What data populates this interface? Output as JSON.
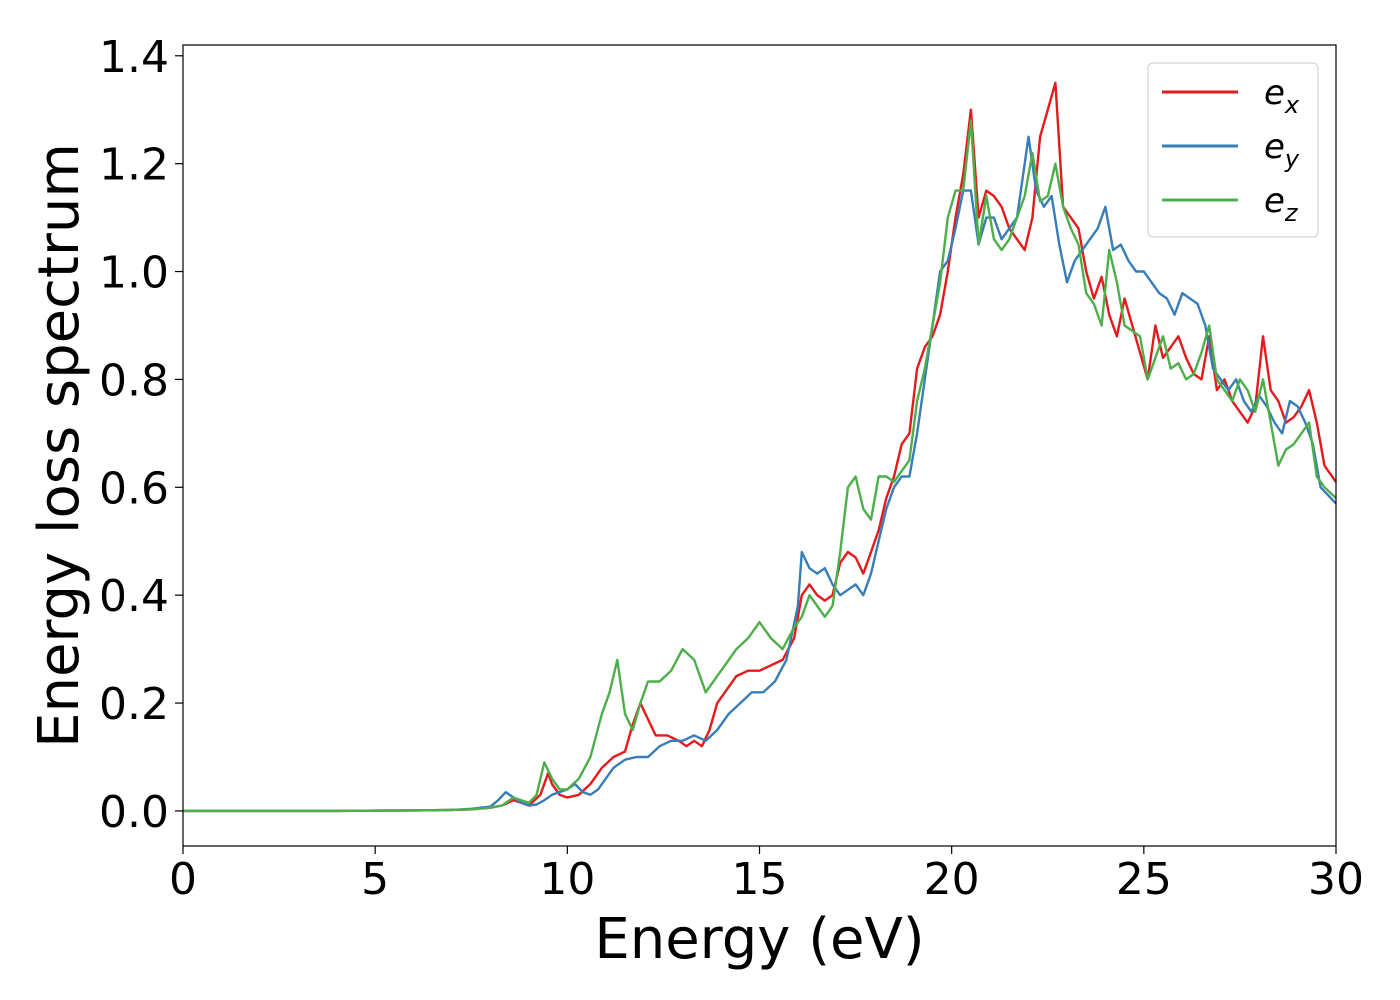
{
  "chart_data": {
    "type": "line",
    "xlabel": "Energy (eV)",
    "ylabel": "Energy loss spectrum",
    "xlim": [
      0,
      30
    ],
    "ylim": [
      -0.065,
      1.42
    ],
    "xticks": [
      "0",
      "5",
      "10",
      "15",
      "20",
      "25",
      "30"
    ],
    "yticks": [
      "0.0",
      "0.2",
      "0.4",
      "0.6",
      "0.8",
      "1.0",
      "1.2",
      "1.4"
    ],
    "grid": false,
    "legend_position": "top-right",
    "series": [
      {
        "name": "e_x",
        "base": "e",
        "sub": "x",
        "color": "#e41a1c",
        "x": [
          0,
          2,
          4,
          6,
          7,
          7.5,
          8,
          8.3,
          8.6,
          8.8,
          9,
          9.3,
          9.5,
          9.6,
          9.8,
          10,
          10.3,
          10.6,
          10.9,
          11.2,
          11.5,
          11.7,
          11.9,
          12.1,
          12.3,
          12.6,
          12.9,
          13.1,
          13.3,
          13.5,
          13.7,
          13.9,
          14.1,
          14.4,
          14.7,
          15,
          15.3,
          15.6,
          15.9,
          16.1,
          16.3,
          16.5,
          16.7,
          16.9,
          17.1,
          17.3,
          17.5,
          17.7,
          17.9,
          18.1,
          18.3,
          18.5,
          18.7,
          18.9,
          19.1,
          19.3,
          19.5,
          19.7,
          19.9,
          20.1,
          20.3,
          20.5,
          20.7,
          20.9,
          21.1,
          21.3,
          21.5,
          21.7,
          21.9,
          22.1,
          22.3,
          22.5,
          22.7,
          22.9,
          23.1,
          23.3,
          23.5,
          23.7,
          23.9,
          24.1,
          24.3,
          24.5,
          24.7,
          24.9,
          25.1,
          25.3,
          25.5,
          25.7,
          25.9,
          26.1,
          26.3,
          26.5,
          26.7,
          26.9,
          27.1,
          27.3,
          27.5,
          27.7,
          27.9,
          28.1,
          28.3,
          28.5,
          28.7,
          28.9,
          29.1,
          29.3,
          29.5,
          29.7,
          30
        ],
        "y": [
          0,
          0,
          0,
          0.001,
          0.002,
          0.003,
          0.006,
          0.01,
          0.02,
          0.015,
          0.01,
          0.03,
          0.07,
          0.05,
          0.03,
          0.025,
          0.03,
          0.05,
          0.08,
          0.1,
          0.11,
          0.16,
          0.2,
          0.17,
          0.14,
          0.14,
          0.13,
          0.12,
          0.13,
          0.12,
          0.15,
          0.2,
          0.22,
          0.25,
          0.26,
          0.26,
          0.27,
          0.28,
          0.32,
          0.4,
          0.42,
          0.4,
          0.39,
          0.4,
          0.46,
          0.48,
          0.47,
          0.44,
          0.48,
          0.52,
          0.58,
          0.62,
          0.68,
          0.7,
          0.82,
          0.86,
          0.88,
          0.92,
          1.0,
          1.1,
          1.18,
          1.3,
          1.1,
          1.15,
          1.14,
          1.12,
          1.08,
          1.06,
          1.04,
          1.1,
          1.25,
          1.3,
          1.35,
          1.12,
          1.1,
          1.08,
          1.0,
          0.95,
          0.99,
          0.92,
          0.88,
          0.95,
          0.9,
          0.85,
          0.8,
          0.9,
          0.84,
          0.86,
          0.88,
          0.84,
          0.81,
          0.8,
          0.88,
          0.78,
          0.8,
          0.76,
          0.74,
          0.72,
          0.75,
          0.88,
          0.78,
          0.76,
          0.72,
          0.73,
          0.75,
          0.78,
          0.72,
          0.64,
          0.61
        ]
      },
      {
        "name": "e_y",
        "base": "e",
        "sub": "y",
        "color": "#377eb8",
        "x": [
          0,
          2,
          4,
          6,
          7,
          7.5,
          8,
          8.2,
          8.4,
          8.6,
          8.8,
          9,
          9.2,
          9.4,
          9.6,
          9.8,
          10,
          10.2,
          10.4,
          10.6,
          10.8,
          11,
          11.2,
          11.5,
          11.8,
          12.1,
          12.4,
          12.7,
          13,
          13.3,
          13.6,
          13.9,
          14.2,
          14.5,
          14.8,
          15.1,
          15.4,
          15.7,
          16,
          16.1,
          16.3,
          16.5,
          16.7,
          16.9,
          17.1,
          17.3,
          17.5,
          17.7,
          17.9,
          18.1,
          18.3,
          18.5,
          18.7,
          18.9,
          19.1,
          19.3,
          19.5,
          19.7,
          19.9,
          20.1,
          20.3,
          20.5,
          20.7,
          20.9,
          21.1,
          21.3,
          21.5,
          21.7,
          21.9,
          22,
          22.2,
          22.4,
          22.6,
          22.8,
          23,
          23.2,
          23.4,
          23.6,
          23.8,
          24,
          24.2,
          24.4,
          24.6,
          24.8,
          25,
          25.2,
          25.4,
          25.6,
          25.8,
          26,
          26.2,
          26.4,
          26.6,
          26.8,
          27,
          27.2,
          27.4,
          27.6,
          27.8,
          28,
          28.2,
          28.4,
          28.6,
          28.8,
          29,
          29.2,
          29.4,
          29.6,
          30
        ],
        "y": [
          0,
          0,
          0,
          0.001,
          0.002,
          0.004,
          0.008,
          0.02,
          0.035,
          0.025,
          0.015,
          0.01,
          0.012,
          0.02,
          0.03,
          0.035,
          0.04,
          0.05,
          0.035,
          0.03,
          0.04,
          0.06,
          0.08,
          0.095,
          0.1,
          0.1,
          0.12,
          0.13,
          0.13,
          0.14,
          0.13,
          0.15,
          0.18,
          0.2,
          0.22,
          0.22,
          0.24,
          0.28,
          0.38,
          0.48,
          0.45,
          0.44,
          0.45,
          0.42,
          0.4,
          0.41,
          0.42,
          0.4,
          0.44,
          0.5,
          0.56,
          0.6,
          0.62,
          0.62,
          0.7,
          0.8,
          0.9,
          1.0,
          1.02,
          1.08,
          1.15,
          1.15,
          1.05,
          1.1,
          1.1,
          1.06,
          1.08,
          1.1,
          1.2,
          1.25,
          1.15,
          1.12,
          1.14,
          1.05,
          0.98,
          1.02,
          1.04,
          1.06,
          1.08,
          1.12,
          1.04,
          1.05,
          1.02,
          1.0,
          1.0,
          0.98,
          0.96,
          0.95,
          0.92,
          0.96,
          0.95,
          0.94,
          0.9,
          0.82,
          0.8,
          0.78,
          0.8,
          0.76,
          0.74,
          0.77,
          0.75,
          0.72,
          0.7,
          0.76,
          0.75,
          0.72,
          0.68,
          0.6,
          0.57
        ]
      },
      {
        "name": "e_z",
        "base": "e",
        "sub": "z",
        "color": "#4daf4a",
        "x": [
          0,
          2,
          4,
          6,
          7,
          7.5,
          8,
          8.3,
          8.6,
          8.8,
          9,
          9.2,
          9.4,
          9.6,
          9.8,
          10,
          10.3,
          10.6,
          10.9,
          11.1,
          11.3,
          11.5,
          11.7,
          11.9,
          12.1,
          12.4,
          12.7,
          13,
          13.3,
          13.6,
          13.9,
          14.1,
          14.4,
          14.7,
          15,
          15.3,
          15.6,
          15.9,
          16.1,
          16.3,
          16.5,
          16.7,
          16.9,
          17.1,
          17.3,
          17.5,
          17.7,
          17.9,
          18.1,
          18.3,
          18.5,
          18.7,
          18.9,
          19.1,
          19.3,
          19.5,
          19.7,
          19.9,
          20.1,
          20.3,
          20.5,
          20.7,
          20.9,
          21.1,
          21.3,
          21.5,
          21.7,
          21.9,
          22.1,
          22.3,
          22.5,
          22.7,
          22.9,
          23.1,
          23.3,
          23.5,
          23.7,
          23.9,
          24.1,
          24.3,
          24.5,
          24.7,
          24.9,
          25.1,
          25.3,
          25.5,
          25.7,
          25.9,
          26.1,
          26.3,
          26.5,
          26.7,
          26.9,
          27.1,
          27.3,
          27.5,
          27.7,
          27.9,
          28.1,
          28.3,
          28.5,
          28.7,
          28.9,
          29.1,
          29.3,
          29.5,
          29.7,
          30
        ],
        "y": [
          0,
          0,
          0,
          0.001,
          0.002,
          0.003,
          0.006,
          0.01,
          0.025,
          0.02,
          0.015,
          0.03,
          0.09,
          0.06,
          0.04,
          0.04,
          0.06,
          0.1,
          0.18,
          0.22,
          0.28,
          0.18,
          0.15,
          0.2,
          0.24,
          0.24,
          0.26,
          0.3,
          0.28,
          0.22,
          0.25,
          0.27,
          0.3,
          0.32,
          0.35,
          0.32,
          0.3,
          0.34,
          0.36,
          0.4,
          0.38,
          0.36,
          0.38,
          0.48,
          0.6,
          0.62,
          0.56,
          0.54,
          0.62,
          0.62,
          0.61,
          0.63,
          0.65,
          0.76,
          0.82,
          0.9,
          0.98,
          1.1,
          1.15,
          1.15,
          1.28,
          1.05,
          1.14,
          1.06,
          1.04,
          1.06,
          1.1,
          1.14,
          1.22,
          1.13,
          1.14,
          1.2,
          1.12,
          1.08,
          1.05,
          0.96,
          0.94,
          0.9,
          1.04,
          0.98,
          0.9,
          0.89,
          0.88,
          0.8,
          0.84,
          0.88,
          0.82,
          0.83,
          0.8,
          0.81,
          0.85,
          0.9,
          0.8,
          0.78,
          0.76,
          0.8,
          0.78,
          0.74,
          0.8,
          0.72,
          0.64,
          0.67,
          0.68,
          0.7,
          0.72,
          0.62,
          0.6,
          0.58
        ]
      }
    ]
  }
}
